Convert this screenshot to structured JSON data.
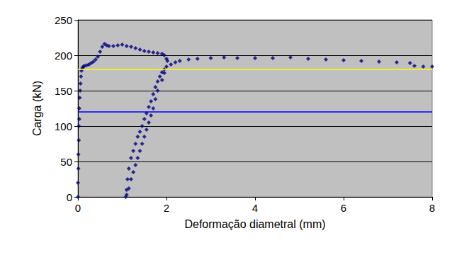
{
  "chart_data": {
    "type": "scatter",
    "x_label": "Deformação diametral (mm)",
    "y_label": "Carga (kN)",
    "xlim": [
      0,
      8
    ],
    "ylim": [
      0,
      250
    ],
    "xticks": [
      0,
      2,
      4,
      6,
      8
    ],
    "yticks": [
      0,
      50,
      100,
      150,
      200,
      250
    ],
    "grid": true,
    "series": [
      {
        "type": "scatter",
        "color": "#000080",
        "marker": "diamond",
        "x": [
          0,
          0,
          0.01,
          0.01,
          0.02,
          0.02,
          0.03,
          0.03,
          0.04,
          0.05,
          0.06,
          0.07,
          0.08,
          0.1,
          0.12,
          0.15,
          0.2,
          0.25,
          0.3,
          0.35,
          0.4,
          0.45,
          0.5,
          0.55,
          0.6,
          0.65,
          0.7,
          0.8,
          0.9,
          1.0,
          1.1,
          1.2,
          1.3,
          1.4,
          1.5,
          1.6,
          1.7,
          1.8,
          1.9,
          1.95,
          2.0,
          2.02,
          1.95,
          1.9,
          1.8,
          1.75,
          1.7,
          1.65,
          1.6,
          1.55,
          1.5,
          1.45,
          1.4,
          1.35,
          1.3,
          1.25,
          1.2,
          1.15,
          1.1,
          1.08,
          1.1,
          1.12,
          1.15,
          1.2,
          1.25,
          1.3,
          1.35,
          1.4,
          1.45,
          1.5,
          1.55,
          1.6,
          1.65,
          1.7,
          1.75,
          1.8,
          1.85,
          1.9,
          1.95,
          2.0,
          2.1,
          2.2,
          2.3,
          2.5,
          2.7,
          3.0,
          3.3,
          3.6,
          4.0,
          4.4,
          4.8,
          5.2,
          5.6,
          6.0,
          6.4,
          6.8,
          7.2,
          7.5,
          7.6,
          7.8,
          8.0
        ],
        "values": [
          0,
          20,
          40,
          60,
          80,
          100,
          110,
          125,
          140,
          150,
          160,
          170,
          178,
          182,
          184,
          185,
          186,
          187,
          189,
          191,
          194,
          198,
          205,
          212,
          216,
          214,
          213,
          213,
          214,
          215,
          213,
          212,
          210,
          208,
          206,
          205,
          204,
          203,
          202,
          200,
          195,
          192,
          175,
          165,
          150,
          138,
          125,
          115,
          105,
          95,
          85,
          75,
          65,
          55,
          45,
          35,
          25,
          12,
          3,
          0,
          10,
          25,
          40,
          55,
          65,
          75,
          85,
          92,
          100,
          110,
          118,
          127,
          135,
          145,
          155,
          163,
          170,
          176,
          180,
          184,
          187,
          190,
          192,
          194,
          195,
          196,
          197,
          196,
          196,
          196,
          197,
          195,
          194,
          193,
          192,
          191,
          190,
          189,
          185,
          184,
          184
        ]
      },
      {
        "type": "line",
        "color": "#ffff00",
        "line_style": "solid",
        "x": [
          0,
          8
        ],
        "values": [
          180,
          180
        ]
      },
      {
        "type": "line",
        "color": "#0000ff",
        "line_style": "solid",
        "x": [
          0,
          8
        ],
        "values": [
          120,
          120
        ]
      }
    ]
  }
}
